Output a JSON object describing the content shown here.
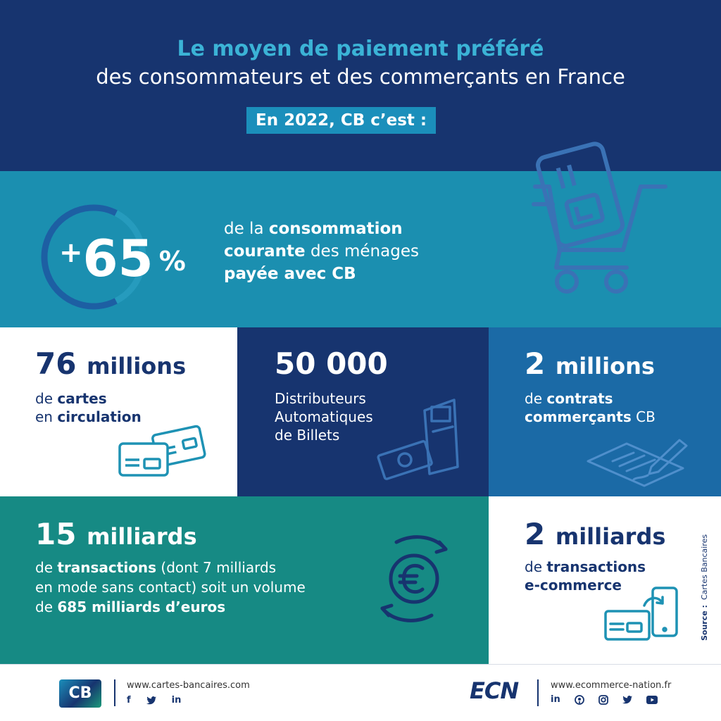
{
  "header": {
    "title": "Le moyen de paiement préféré",
    "subtitle": "des consommateurs et des commerçants en France",
    "pill": "En 2022, CB c’est :"
  },
  "stat_65": {
    "plus": "+",
    "number": "65",
    "percent": "%",
    "progress_percent": 65,
    "desc_line1_a": "de la ",
    "desc_line1_b": "consommation",
    "desc_line2_a": "courante",
    "desc_line2_b": " des ménages",
    "desc_line3": "payée avec CB"
  },
  "stat_cartes": {
    "number": "76",
    "unit": "millions",
    "line1_a": "de ",
    "line1_b": "cartes",
    "line2_a": "en ",
    "line2_b": "circulation"
  },
  "stat_dab": {
    "number": "50 000",
    "line1": "Distributeurs",
    "line2": "Automatiques",
    "line3": "de Billets"
  },
  "stat_contrats": {
    "number": "2",
    "unit": "millions",
    "line1_a": "de ",
    "line1_b": "contrats",
    "line2_a": "commerçants",
    "line2_b": " CB"
  },
  "stat_transactions": {
    "number": "15",
    "unit": "milliards",
    "line1_a": "de ",
    "line1_b": "transactions",
    "line1_c": " (dont 7 milliards",
    "line2": "en mode sans contact) soit un volume",
    "line3_a": "de ",
    "line3_b": "685 milliards d’euros"
  },
  "stat_ecommerce": {
    "number": "2",
    "unit": "milliards",
    "line1_a": "de ",
    "line1_b": "transactions",
    "line2": "e-commerce"
  },
  "source": {
    "label": "Source :",
    "value": "Cartes Bancaires"
  },
  "footer": {
    "cb_logo": "CB",
    "cb_url": "www.cartes-bancaires.com",
    "ecn_logo": "ECN",
    "ecn_url": "www.ecommerce-nation.fr",
    "facebook": "f",
    "linkedin": "in"
  },
  "icons": {
    "shopping_cart": "shopping-cart-card-icon",
    "cards": "bank-cards-icon",
    "atm": "atm-icon",
    "contract": "contract-pen-icon",
    "euro": "euro-exchange-icon",
    "phone_card": "phone-card-icon"
  },
  "colors": {
    "navy": "#17346f",
    "teal_blue": "#1b8fb0",
    "light_blue": "#3bb3d6",
    "mid_blue": "#1b6aa6",
    "green_teal": "#168a84",
    "icon_on_white": "#1e92b4"
  }
}
